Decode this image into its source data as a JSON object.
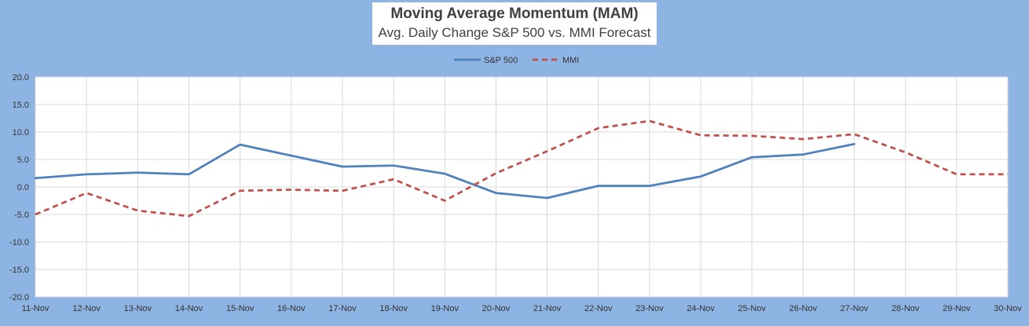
{
  "chart_data": {
    "type": "line",
    "title": "Moving Average Momentum (MAM)",
    "subtitle": "Avg. Daily Change S&P 500 vs. MMI Forecast",
    "categories": [
      "11-Nov",
      "12-Nov",
      "13-Nov",
      "14-Nov",
      "15-Nov",
      "16-Nov",
      "17-Nov",
      "18-Nov",
      "19-Nov",
      "20-Nov",
      "21-Nov",
      "22-Nov",
      "23-Nov",
      "24-Nov",
      "25-Nov",
      "26-Nov",
      "27-Nov",
      "28-Nov",
      "29-Nov",
      "30-Nov"
    ],
    "ylim": [
      -20,
      20
    ],
    "yticks": [
      "20.0",
      "15.0",
      "10.0",
      "5.0",
      "0.0",
      "-5.0",
      "-10.0",
      "-15.0",
      "-20.0"
    ],
    "ytick_values": [
      20,
      15,
      10,
      5,
      0,
      -5,
      -10,
      -15,
      -20
    ],
    "grid": true,
    "legend_position": "top",
    "series": [
      {
        "name": "S&P 500",
        "color": "#4f81bd",
        "style": "solid",
        "values": [
          1.6,
          2.3,
          2.6,
          2.3,
          7.7,
          5.7,
          3.7,
          3.9,
          2.4,
          -1.1,
          -2.0,
          0.2,
          0.2,
          1.9,
          5.4,
          5.9,
          7.8,
          null,
          null,
          null
        ]
      },
      {
        "name": "MMI",
        "color": "#c0504d",
        "style": "dashed",
        "values": [
          -5.0,
          -1.1,
          -4.3,
          -5.3,
          -0.7,
          -0.5,
          -0.7,
          1.4,
          -2.5,
          2.5,
          6.5,
          10.7,
          12.0,
          9.4,
          9.3,
          8.7,
          9.6,
          6.3,
          2.3,
          2.3
        ]
      }
    ]
  }
}
